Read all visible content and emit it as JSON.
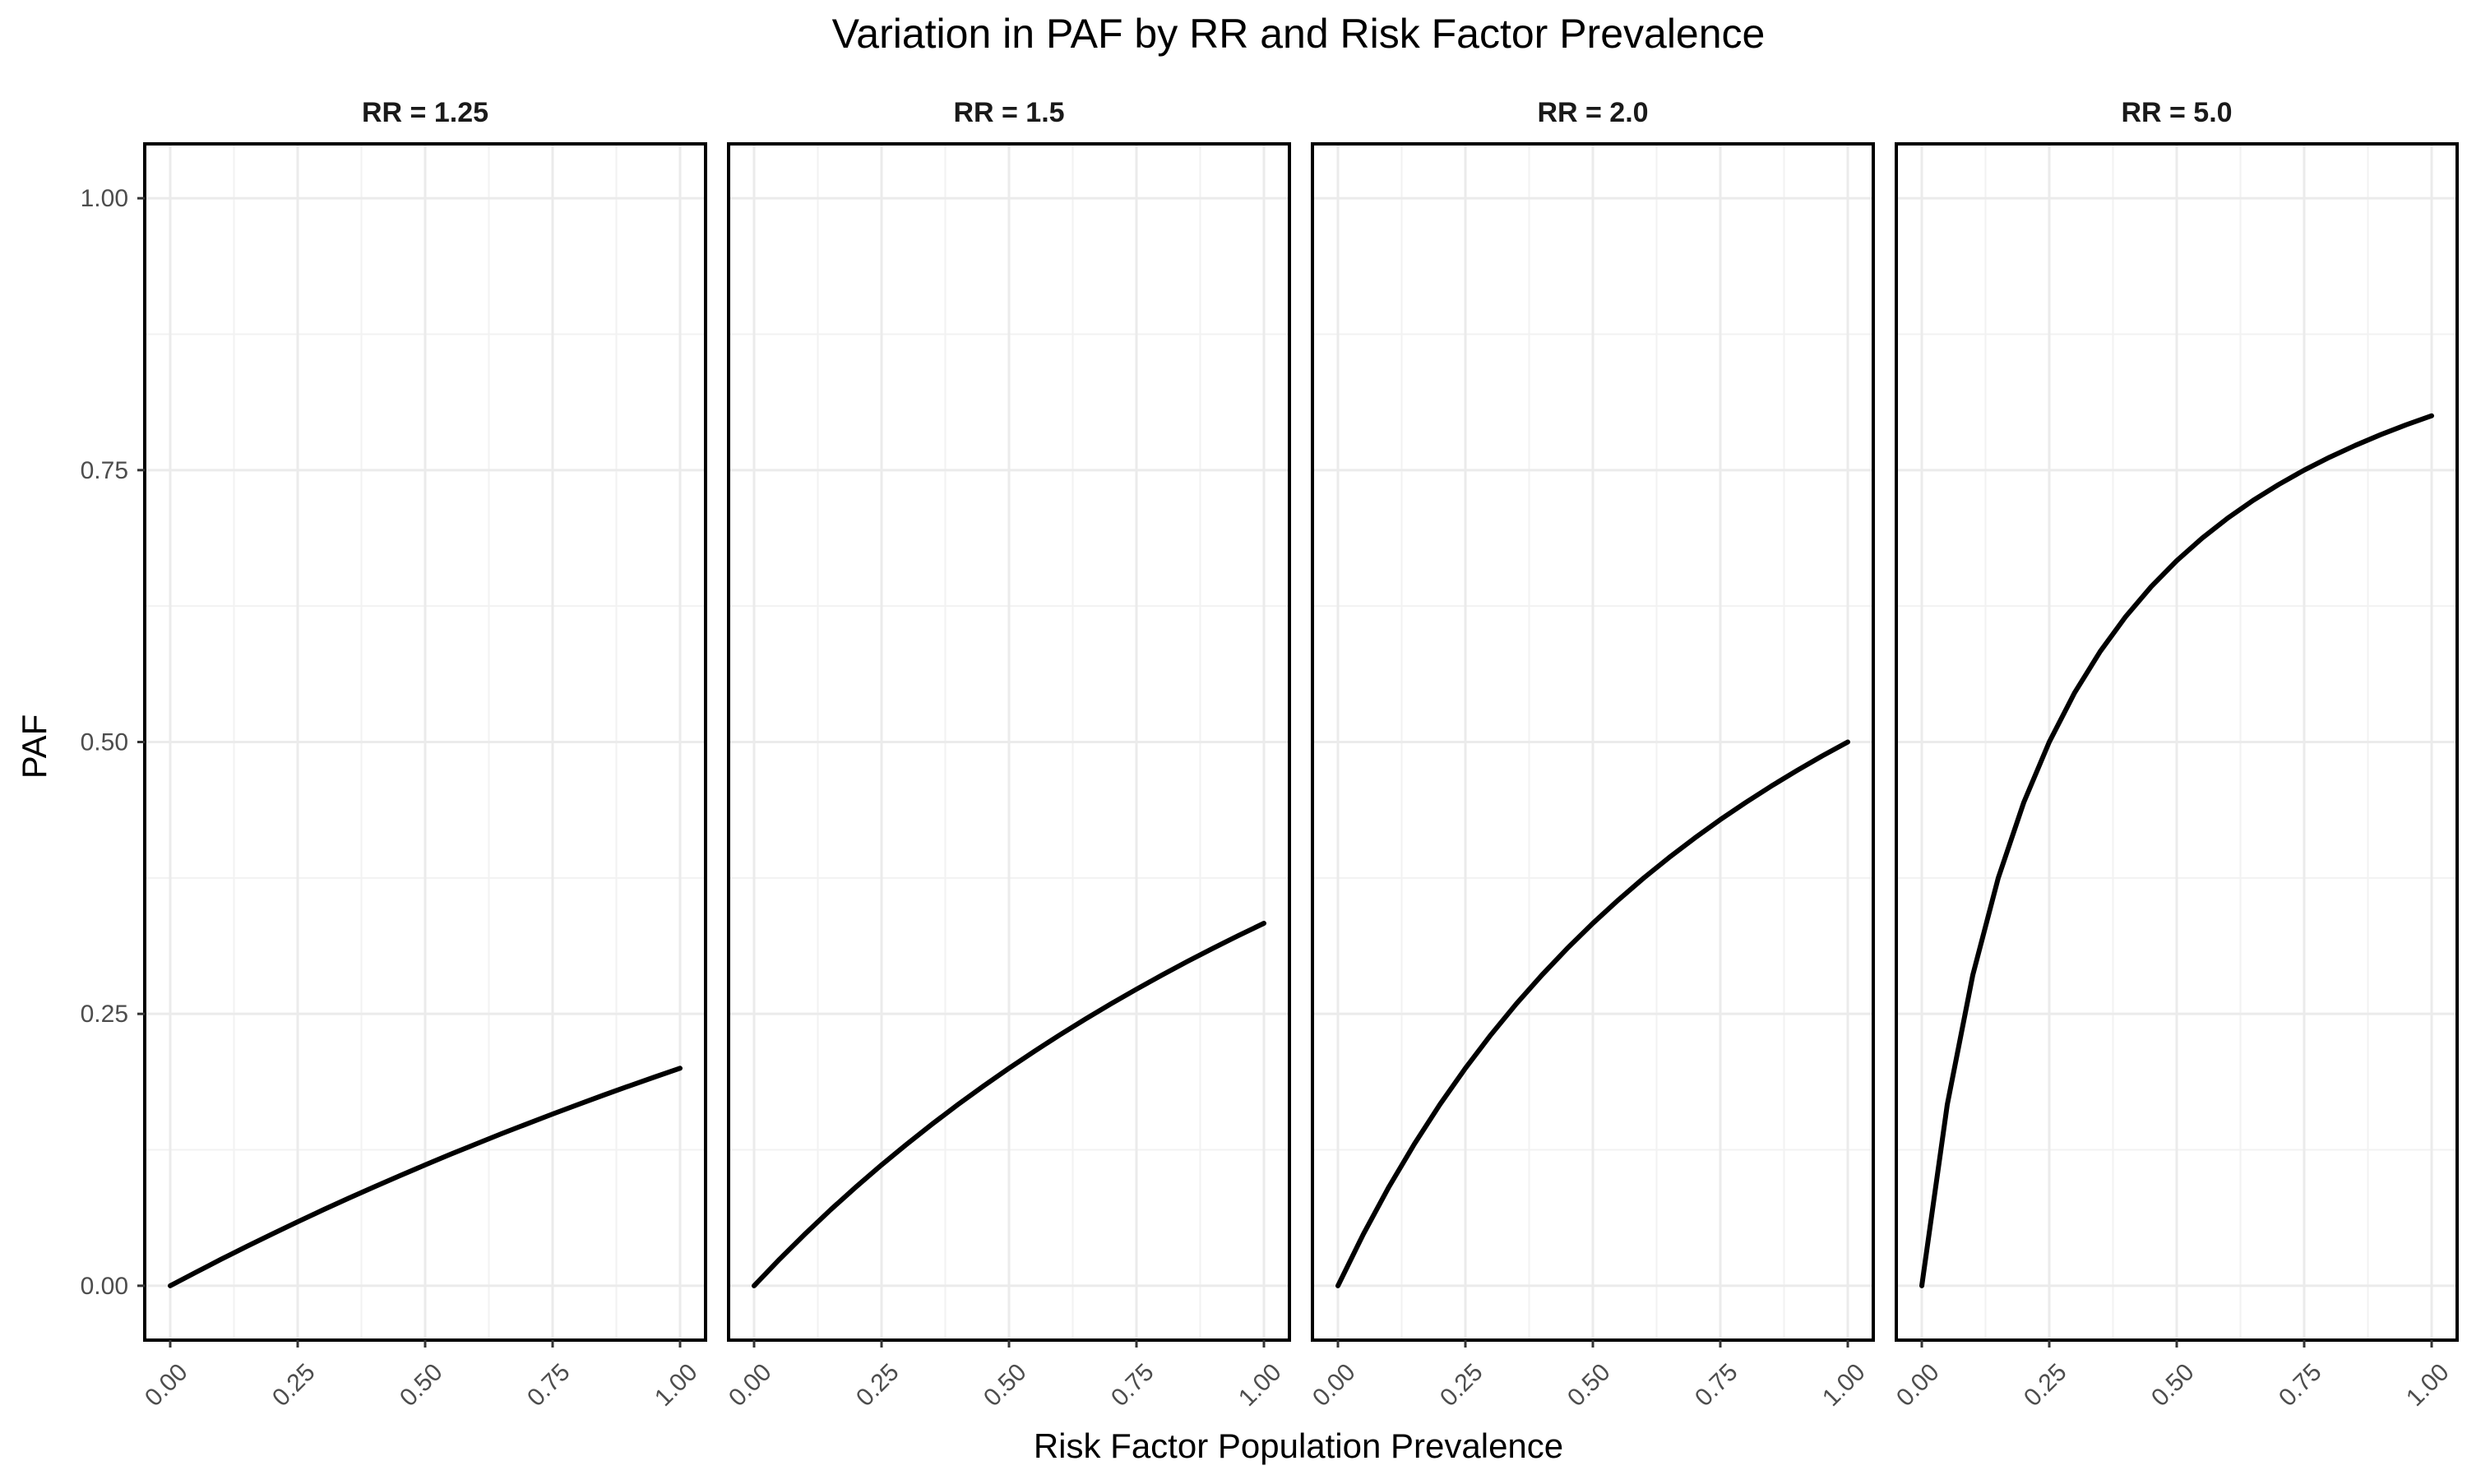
{
  "chart_data": {
    "type": "line",
    "title": "Variation in PAF by RR and Risk Factor Prevalence",
    "xlabel": "Risk Factor Population Prevalence",
    "ylabel": "PAF",
    "xlim": [
      0,
      1
    ],
    "ylim": [
      0,
      1
    ],
    "x_ticks": [
      "0.00",
      "0.25",
      "0.50",
      "0.75",
      "1.00"
    ],
    "y_ticks": [
      "0.00",
      "0.25",
      "0.50",
      "0.75",
      "1.00"
    ],
    "grid": true,
    "line_color": "#000000",
    "x": [
      0.0,
      0.05,
      0.1,
      0.15,
      0.2,
      0.25,
      0.3,
      0.35,
      0.4,
      0.45,
      0.5,
      0.55,
      0.6,
      0.65,
      0.7,
      0.75,
      0.8,
      0.85,
      0.9,
      0.95,
      1.0
    ],
    "panels": [
      {
        "label": "RR = 1.25",
        "rr": 1.25,
        "values": [
          0.0,
          0.0123,
          0.0244,
          0.0361,
          0.0476,
          0.0588,
          0.0698,
          0.0805,
          0.0909,
          0.1011,
          0.1111,
          0.1209,
          0.1304,
          0.1398,
          0.1489,
          0.1579,
          0.1667,
          0.1753,
          0.1837,
          0.1919,
          0.2
        ]
      },
      {
        "label": "RR = 1.5",
        "rr": 1.5,
        "values": [
          0.0,
          0.0244,
          0.0476,
          0.0698,
          0.0909,
          0.1111,
          0.1304,
          0.1489,
          0.1667,
          0.1837,
          0.2,
          0.2157,
          0.2308,
          0.2453,
          0.2593,
          0.2727,
          0.2857,
          0.2982,
          0.3103,
          0.322,
          0.3333
        ]
      },
      {
        "label": "RR = 2.0",
        "rr": 2.0,
        "values": [
          0.0,
          0.0476,
          0.0909,
          0.1304,
          0.1667,
          0.2,
          0.2308,
          0.2593,
          0.2857,
          0.3103,
          0.3333,
          0.3548,
          0.375,
          0.3939,
          0.4118,
          0.4286,
          0.4444,
          0.4595,
          0.4737,
          0.4872,
          0.5
        ]
      },
      {
        "label": "RR = 5.0",
        "rr": 5.0,
        "values": [
          0.0,
          0.1667,
          0.2857,
          0.375,
          0.4444,
          0.5,
          0.5455,
          0.5833,
          0.6154,
          0.6429,
          0.6667,
          0.6875,
          0.7059,
          0.7222,
          0.7368,
          0.75,
          0.7619,
          0.7727,
          0.7826,
          0.7917,
          0.8
        ]
      }
    ]
  }
}
